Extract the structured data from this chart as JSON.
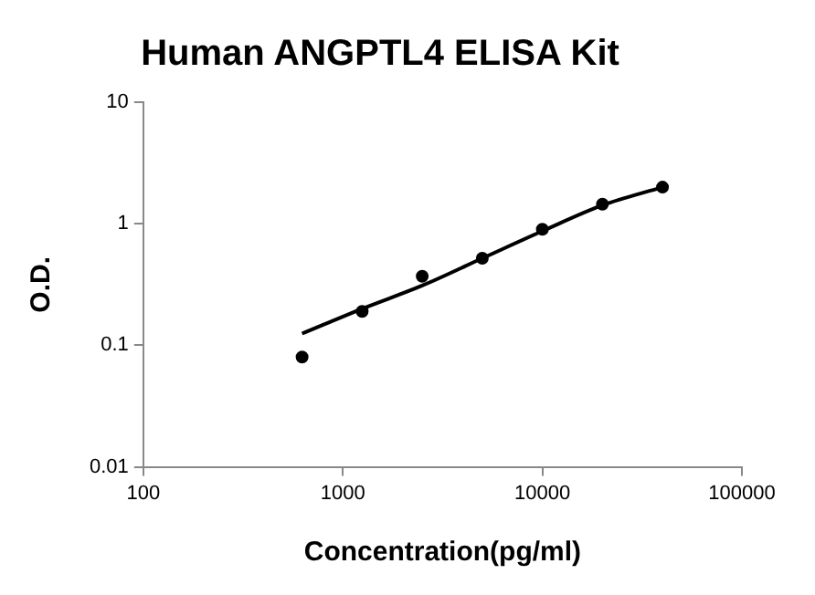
{
  "chart_data": {
    "type": "scatter",
    "title": "Human ANGPTL4 ELISA Kit",
    "xlabel": "Concentration(pg/ml)",
    "ylabel": "O.D.",
    "series": [
      {
        "marker": "circle",
        "color": "#000000",
        "x": [
          625,
          1250,
          2500,
          5000,
          10000,
          20000,
          40000
        ],
        "values": [
          0.08,
          0.19,
          0.37,
          0.52,
          0.9,
          1.45,
          2.0
        ]
      },
      {
        "type": "line",
        "marker": "none",
        "color": "#000000",
        "x": [
          625,
          1250,
          2500,
          5000,
          10000,
          20000,
          40000
        ],
        "values": [
          0.125,
          0.2,
          0.31,
          0.52,
          0.87,
          1.42,
          2.0
        ]
      }
    ],
    "xlim": [
      100,
      100000
    ],
    "xticks": [
      100,
      1000,
      10000,
      100000
    ],
    "ylim": [
      0.01,
      10
    ],
    "yticks": [
      0.01,
      0.1,
      1,
      10
    ],
    "log": "xy",
    "grid": false,
    "legend": false,
    "line_style": "solid"
  }
}
